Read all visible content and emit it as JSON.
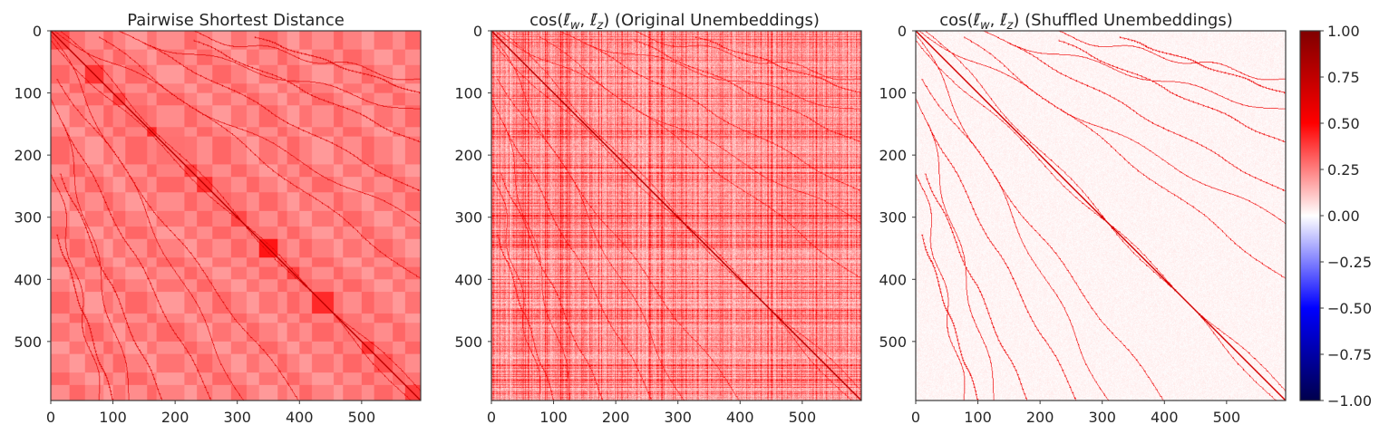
{
  "chart_data": [
    {
      "type": "heatmap",
      "title": "Pairwise Shortest Distance",
      "x_ticks": [
        "0",
        "100",
        "200",
        "300",
        "400",
        "500"
      ],
      "y_ticks": [
        "0",
        "100",
        "200",
        "300",
        "400",
        "500"
      ],
      "xlim": [
        0,
        595
      ],
      "ylim": [
        595,
        0
      ],
      "colormap": "seismic",
      "vmin": -1.0,
      "vmax": 1.0,
      "background_value": 0.2,
      "block_boundaries": [
        0,
        30,
        55,
        85,
        100,
        120,
        155,
        170,
        215,
        235,
        260,
        290,
        315,
        335,
        365,
        380,
        400,
        420,
        455,
        470,
        500,
        520,
        550,
        570,
        595
      ],
      "block_values": [
        0.28,
        0.2,
        0.32,
        0.25,
        0.3,
        0.22,
        0.35,
        0.2,
        0.3,
        0.33,
        0.22,
        0.28,
        0.2,
        0.38,
        0.25,
        0.3,
        0.22,
        0.34,
        0.25,
        0.2,
        0.32,
        0.27,
        0.22,
        0.3
      ],
      "diagonal_value": 1.0,
      "line_value": 0.6
    },
    {
      "type": "heatmap",
      "title_parts": [
        "cos(",
        "ℓ̄",
        "w",
        ", ",
        "ℓ̄",
        "z",
        ") (Original Unembeddings)"
      ],
      "x_ticks": [
        "0",
        "100",
        "200",
        "300",
        "400",
        "500"
      ],
      "y_ticks": [
        "0",
        "100",
        "200",
        "300",
        "400",
        "500"
      ],
      "xlim": [
        0,
        595
      ],
      "ylim": [
        595,
        0
      ],
      "colormap": "seismic",
      "vmin": -1.0,
      "vmax": 1.0,
      "background_value": 0.12,
      "noise_level": 0.16,
      "diagonal_value": 1.0,
      "line_value": 0.45
    },
    {
      "type": "heatmap",
      "title_parts": [
        "cos(",
        "ℓ̄",
        "w",
        ", ",
        "ℓ̄",
        "z",
        ") (Shuffled Unembeddings)"
      ],
      "x_ticks": [
        "0",
        "100",
        "200",
        "300",
        "400",
        "500"
      ],
      "y_ticks": [
        "0",
        "100",
        "200",
        "300",
        "400",
        "500"
      ],
      "xlim": [
        0,
        595
      ],
      "ylim": [
        595,
        0
      ],
      "colormap": "seismic",
      "vmin": -1.0,
      "vmax": 1.0,
      "background_value": 0.02,
      "noise_level": 0.05,
      "diagonal_value": 0.9,
      "line_value": 0.55
    }
  ],
  "colorbar": {
    "ticks": [
      "1.00",
      "0.75",
      "0.50",
      "0.25",
      "0.00",
      "−0.25",
      "−0.50",
      "−0.75",
      "−1.00"
    ],
    "tick_values": [
      1.0,
      0.75,
      0.5,
      0.25,
      0.0,
      -0.25,
      -0.5,
      -0.75,
      -1.0
    ],
    "colormap": "seismic",
    "colors": {
      "dark_blue": "#00004c",
      "blue": "#0000ff",
      "white": "#ffffff",
      "red": "#ff0000",
      "dark_red": "#800000"
    }
  },
  "structure_curves": [
    {
      "start": [
        0,
        0
      ],
      "end": [
        595,
        310
      ]
    },
    {
      "start": [
        0,
        20
      ],
      "end": [
        595,
        580
      ]
    },
    {
      "start": [
        10,
        80
      ],
      "end": [
        400,
        595
      ]
    },
    {
      "start": [
        20,
        150
      ],
      "end": [
        260,
        595
      ]
    },
    {
      "start": [
        15,
        230
      ],
      "end": [
        180,
        595
      ]
    },
    {
      "start": [
        10,
        330
      ],
      "end": [
        100,
        595
      ]
    },
    {
      "start": [
        80,
        0
      ],
      "end": [
        595,
        130
      ]
    },
    {
      "start": [
        200,
        0
      ],
      "end": [
        595,
        80
      ]
    }
  ]
}
